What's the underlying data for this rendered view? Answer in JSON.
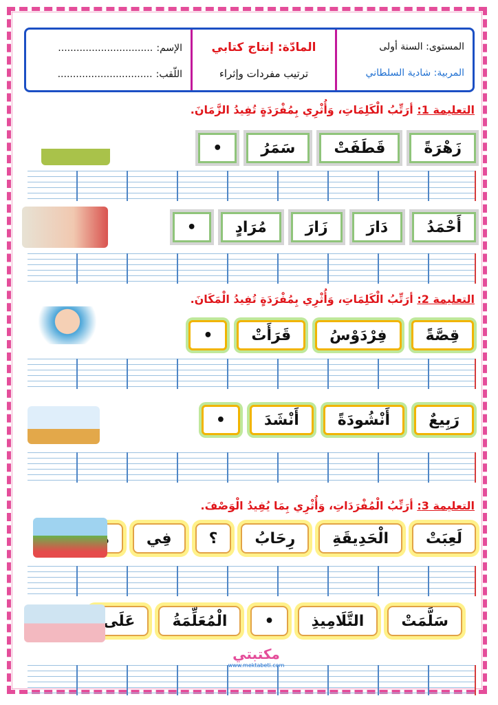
{
  "header": {
    "level": "المستوى: السنة أولى",
    "teacher": "المربية: شادية السلطاني",
    "subject": "المادّة: إنتاج كتابي",
    "topic": "ترتيب مفردات وإثراء",
    "name_label": "الإسم:",
    "surname_label": "اللّقب:",
    "name_dots": "...............................",
    "surname_dots": "..............................."
  },
  "instructions": [
    {
      "label": "التعليمة 1:",
      "text": "أرَتِّبُ الْكَلِمَاتِ، وَأُثْرِي بِمُفْرَدَةٍ تُفِيدُ الزَّمَانَ."
    },
    {
      "label": "التعليمة 2:",
      "text": "أرَتِّبُ الْكَلِمَاتِ، وَأُثْرِي بِمُفْرَدَةٍ تُفِيدُ الْمَكَانَ."
    },
    {
      "label": "التعليمة 3:",
      "text": "أرَتِّبُ الْمُفْرَدَاتِ، وَأُثْرِي بِمَا يُفِيدُ الْوَصْفَ."
    }
  ],
  "rows": [
    [
      "زَهْرَةً",
      "قَطَفَتْ",
      "سَمَرُ",
      "•"
    ],
    [
      "أَحْمَدُ",
      "دَارَ",
      "زَارَ",
      "مُرَادٍ",
      "•"
    ],
    [
      "قِصَّةً",
      "فِرْدَوْسُ",
      "قَرَأَتْ",
      "•"
    ],
    [
      "رَبِيعٌ",
      "أَنْشُودَةً",
      "أَنْشَدَ",
      "•"
    ],
    [
      "لَعِبَتْ",
      "الْحَدِيقَةِ",
      "رِحَابُ",
      "؟",
      "فِي",
      "هَلْ"
    ],
    [
      "سَلَّمَتْ",
      "التَّلَامِيذِ",
      "•",
      "الْمُعَلِّمَةُ",
      "عَلَى"
    ]
  ],
  "logo": {
    "text": "مكتبتي",
    "url": "www.mektabeti.com"
  }
}
